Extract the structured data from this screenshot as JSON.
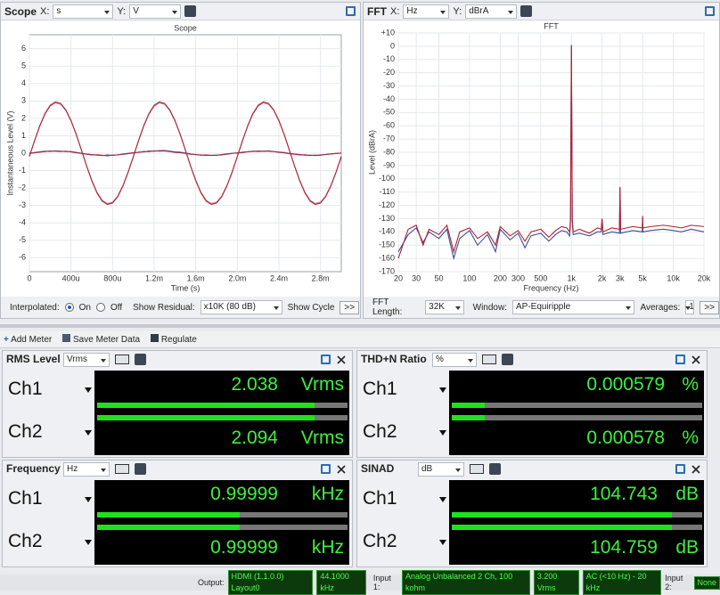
{
  "scope": {
    "header": {
      "title": "Scope",
      "x_label": "X:",
      "x_unit": "s",
      "y_label": "Y:",
      "y_unit": "V"
    },
    "chart_data": {
      "type": "line",
      "title": "Scope",
      "x_label": "Time (s)",
      "y_label": "Instantaneous Level (V)",
      "x": [
        0,
        5e-05,
        0.0001,
        0.00015,
        0.0002,
        0.00025,
        0.0003,
        0.00035,
        0.0004,
        0.00045,
        0.0005,
        0.00055,
        0.0006,
        0.00065,
        0.0007,
        0.00075,
        0.0008,
        0.00085,
        0.0009,
        0.00095,
        0.001,
        0.00105,
        0.0011,
        0.00115,
        0.0012,
        0.00125,
        0.0013,
        0.00135,
        0.0014,
        0.00145,
        0.0015,
        0.00155,
        0.0016,
        0.00165,
        0.0017,
        0.00175,
        0.0018,
        0.00185,
        0.0019,
        0.00195,
        0.002,
        0.00205,
        0.0021,
        0.00215,
        0.0022,
        0.00225,
        0.0023,
        0.00235,
        0.0024,
        0.00245,
        0.0025,
        0.00255,
        0.0026,
        0.00265,
        0.0027,
        0.00275,
        0.0028,
        0.00285,
        0.0029,
        0.00295,
        0.003
      ],
      "series": [
        {
          "color": "#c97a86",
          "values": [
            -0.18,
            0.72,
            1.55,
            2.24,
            2.7,
            2.89,
            2.81,
            2.45,
            1.85,
            1.07,
            0.18,
            -0.72,
            -1.55,
            -2.24,
            -2.7,
            -2.89,
            -2.81,
            -2.45,
            -1.85,
            -1.07,
            -0.18,
            0.72,
            1.55,
            2.24,
            2.7,
            2.89,
            2.81,
            2.45,
            1.85,
            1.07,
            0.18,
            -0.72,
            -1.55,
            -2.24,
            -2.7,
            -2.89,
            -2.81,
            -2.45,
            -1.85,
            -1.07,
            -0.18,
            0.72,
            1.55,
            2.24,
            2.7,
            2.89,
            2.81,
            2.45,
            1.85,
            1.07,
            0.18,
            -0.72,
            -1.55,
            -2.24,
            -2.7,
            -2.89,
            -2.81,
            -2.45,
            -1.85,
            -1.07,
            -0.18
          ]
        },
        {
          "color": "#a8283a",
          "values": [
            -0.19,
            0.73,
            1.58,
            2.28,
            2.75,
            2.94,
            2.86,
            2.49,
            1.88,
            1.09,
            0.19,
            -0.73,
            -1.58,
            -2.28,
            -2.75,
            -2.94,
            -2.86,
            -2.49,
            -1.88,
            -1.09,
            -0.19,
            0.73,
            1.58,
            2.28,
            2.75,
            2.94,
            2.86,
            2.49,
            1.88,
            1.09,
            0.19,
            -0.73,
            -1.58,
            -2.28,
            -2.75,
            -2.94,
            -2.86,
            -2.49,
            -1.88,
            -1.09,
            -0.19,
            0.73,
            1.58,
            2.28,
            2.75,
            2.94,
            2.86,
            2.49,
            1.88,
            1.09,
            0.19,
            -0.73,
            -1.58,
            -2.28,
            -2.75,
            -2.94,
            -2.86,
            -2.49,
            -1.88,
            -1.09,
            -0.19
          ]
        },
        {
          "color": "#4a5fa8",
          "values": [
            -0.02,
            0.04,
            0.08,
            0.12,
            0.1,
            0.14,
            0.12,
            0.09,
            0.1,
            0.05,
            0.0,
            -0.05,
            -0.08,
            -0.11,
            -0.14,
            -0.1,
            -0.13,
            -0.09,
            -0.07,
            -0.03,
            0.01,
            0.06,
            0.07,
            0.13,
            0.11,
            0.15,
            0.16,
            0.12,
            0.08,
            0.06,
            0.02,
            -0.04,
            -0.09,
            -0.1,
            -0.13,
            -0.12,
            -0.11,
            -0.1,
            -0.06,
            -0.02,
            0.02,
            0.03,
            0.09,
            0.1,
            0.13,
            0.11,
            0.14,
            0.1,
            0.07,
            0.04,
            -0.01,
            -0.05,
            -0.07,
            -0.12,
            -0.11,
            -0.14,
            -0.1,
            -0.08,
            -0.05,
            -0.02,
            0.0
          ]
        },
        {
          "color": "#a8283a",
          "values": [
            0.01,
            0.02,
            0.06,
            0.09,
            0.13,
            0.11,
            0.1,
            0.12,
            0.07,
            0.03,
            -0.02,
            -0.06,
            -0.1,
            -0.09,
            -0.12,
            -0.15,
            -0.11,
            -0.1,
            -0.05,
            -0.01,
            0.03,
            0.05,
            0.1,
            0.09,
            0.14,
            0.12,
            0.13,
            0.09,
            0.05,
            0.03,
            -0.01,
            -0.06,
            -0.07,
            -0.12,
            -0.1,
            -0.13,
            -0.12,
            -0.08,
            -0.04,
            0.0,
            0.01,
            0.06,
            0.08,
            0.12,
            0.1,
            0.12,
            0.11,
            0.09,
            0.05,
            0.02,
            -0.03,
            -0.06,
            -0.1,
            -0.09,
            -0.13,
            -0.11,
            -0.12,
            -0.07,
            -0.04,
            -0.01,
            0.01
          ]
        }
      ],
      "xlim": [
        0,
        0.003
      ],
      "ylim": [
        -6.8,
        6.8
      ],
      "xticks": [
        0,
        {
          "value": 0.0004,
          "label": "400u"
        },
        {
          "value": 0.0008,
          "label": "800u"
        },
        {
          "value": 0.0012,
          "label": "1.2m"
        },
        {
          "value": 0.0016,
          "label": "1.6m"
        },
        {
          "value": 0.002,
          "label": "2.0m"
        },
        {
          "value": 0.0024,
          "label": "2.4m"
        },
        {
          "value": 0.0028,
          "label": "2.8m"
        }
      ],
      "yticks": [
        6,
        5,
        4,
        3,
        2,
        1,
        0,
        -1,
        -2,
        -3,
        -4,
        -5,
        -6
      ],
      "grid": true
    },
    "controls": {
      "interpolated_label": "Interpolated:",
      "on": "On",
      "off": "Off",
      "residual_label": "Show Residual:",
      "residual_value": "x10K (80 dB)",
      "cycle_label": "Show Cycle",
      "more": ">>"
    }
  },
  "fft": {
    "header": {
      "title": "FFT",
      "x_label": "X:",
      "x_unit": "Hz",
      "y_label": "Y:",
      "y_unit": "dBrA"
    },
    "chart_data": {
      "type": "line",
      "title": "FFT",
      "x_label": "Frequency (Hz)",
      "y_label": "Level (dBrA)",
      "x_scale": "log",
      "x": [
        20,
        25,
        30,
        35,
        40,
        50,
        60,
        70,
        80,
        100,
        120,
        150,
        180,
        200,
        250,
        300,
        350,
        400,
        500,
        600,
        700,
        800,
        900,
        960,
        980,
        1000,
        1020,
        1040,
        1200,
        1500,
        1800,
        1960,
        2000,
        2040,
        2500,
        2960,
        3000,
        3040,
        4000,
        4960,
        5000,
        5040,
        6000,
        8000,
        10000,
        12000,
        15000,
        20000
      ],
      "series": [
        {
          "color": "#3a4f9a",
          "values": [
            -155,
            -142,
            -137,
            -148,
            -140,
            -145,
            -138,
            -160,
            -145,
            -139,
            -150,
            -142,
            -155,
            -138,
            -146,
            -141,
            -152,
            -143,
            -141,
            -147,
            -142,
            -139,
            -140,
            -143,
            -132,
            1,
            -132,
            -142,
            -141,
            -143,
            -140,
            -140,
            -131,
            -142,
            -140,
            -141,
            -107,
            -141,
            -139,
            -140,
            -129,
            -140,
            -139,
            -138,
            -139,
            -140,
            -138,
            -140
          ]
        },
        {
          "color": "#b22234",
          "values": [
            -160,
            -138,
            -135,
            -150,
            -138,
            -142,
            -135,
            -155,
            -140,
            -137,
            -145,
            -140,
            -150,
            -136,
            -143,
            -139,
            -147,
            -140,
            -138,
            -144,
            -139,
            -136,
            -137,
            -140,
            -130,
            0,
            -130,
            -140,
            -138,
            -141,
            -137,
            -138,
            -130,
            -140,
            -137,
            -138,
            -106,
            -138,
            -136,
            -137,
            -128,
            -137,
            -136,
            -135,
            -136,
            -137,
            -135,
            -136
          ]
        }
      ],
      "xlim": [
        20,
        20000
      ],
      "ylim": [
        -170,
        10
      ],
      "xticks": [
        20,
        30,
        50,
        100,
        200,
        300,
        500,
        {
          "value": 1000,
          "label": "1k"
        },
        {
          "value": 2000,
          "label": "2k"
        },
        {
          "value": 3000,
          "label": "3k"
        },
        {
          "value": 5000,
          "label": "5k"
        },
        {
          "value": 10000,
          "label": "10k"
        },
        {
          "value": 20000,
          "label": "20k"
        }
      ],
      "yticks": [
        {
          "value": 10,
          "label": "+10"
        },
        0,
        -10,
        -20,
        -30,
        -40,
        -50,
        -60,
        -70,
        -80,
        -90,
        -100,
        -110,
        -120,
        -130,
        -140,
        -150,
        -160,
        -170
      ],
      "grid": true
    },
    "controls": {
      "length_label": "FFT Length:",
      "length_value": "32K",
      "window_label": "Window:",
      "window_value": "AP-Equiripple",
      "averages_label": "Averages:",
      "averages_value": "1",
      "more": ">>"
    }
  },
  "toolbar": {
    "add_meter": "Add Meter",
    "save": "Save Meter Data",
    "regulate": "Regulate"
  },
  "meters": [
    {
      "title": "RMS Level",
      "unit": "Vrms",
      "channels": [
        {
          "name": "Ch1",
          "value": "2.038",
          "unit": "Vrms"
        },
        {
          "name": "Ch2",
          "value": "2.094",
          "unit": "Vrms"
        }
      ]
    },
    {
      "title": "THD+N Ratio",
      "unit": "%",
      "channels": [
        {
          "name": "Ch1",
          "value": "0.000579",
          "unit": "%"
        },
        {
          "name": "Ch2",
          "value": "0.000578",
          "unit": "%"
        }
      ]
    },
    {
      "title": "Frequency",
      "unit": "Hz",
      "channels": [
        {
          "name": "Ch1",
          "value": "0.99999",
          "unit": "kHz"
        },
        {
          "name": "Ch2",
          "value": "0.99999",
          "unit": "kHz"
        }
      ]
    },
    {
      "title": "SINAD",
      "unit": "dB",
      "channels": [
        {
          "name": "Ch1",
          "value": "104.743",
          "unit": "dB"
        },
        {
          "name": "Ch2",
          "value": "104.759",
          "unit": "dB"
        }
      ]
    }
  ],
  "status": {
    "output_label": "Output:",
    "output": "HDMI (1.1.0.0)  Layout0",
    "output_rate": "44.1000 kHz",
    "input1_label": "Input 1:",
    "input1": "Analog Unbalanced 2 Ch, 100 kohm",
    "input1_level": "3.200 Vrms",
    "input1_filter": "AC (<10 Hz) - 20 kHz",
    "input2_label": "Input 2:",
    "input2": "None"
  }
}
